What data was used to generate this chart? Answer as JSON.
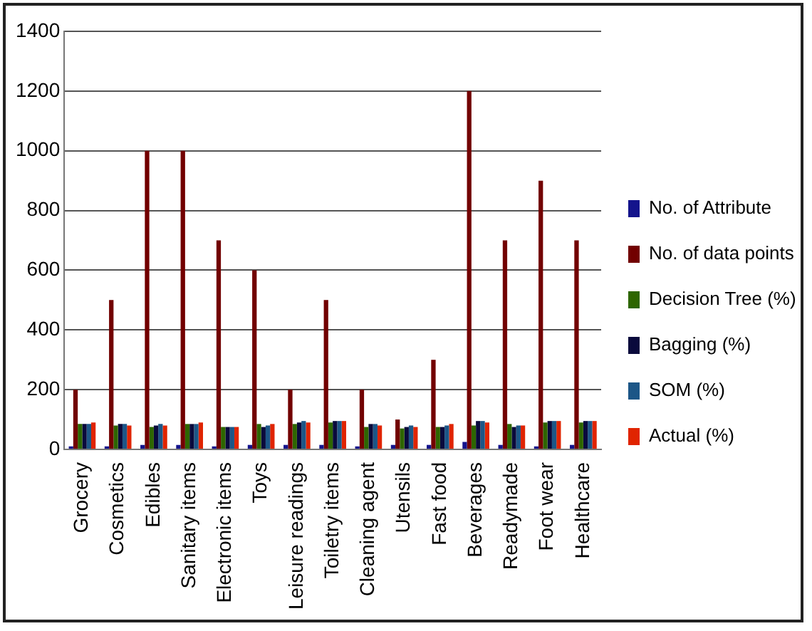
{
  "chart_data": {
    "type": "bar",
    "categories": [
      "Grocery",
      "Cosmetics",
      "Edibles",
      "Sanitary items",
      "Electronic items",
      "Toys",
      "Leisure readings",
      "Toiletry items",
      "Cleaning agent",
      "Utensils",
      "Fast food",
      "Beverages",
      "Readymade",
      "Foot wear",
      "Healthcare"
    ],
    "series": [
      {
        "name": "No. of Attribute",
        "color": "#14148c",
        "values": [
          10,
          10,
          15,
          15,
          10,
          15,
          15,
          15,
          10,
          15,
          15,
          25,
          15,
          10,
          15
        ]
      },
      {
        "name": "No. of data points",
        "color": "#720000",
        "values": [
          200,
          500,
          1000,
          1000,
          700,
          600,
          200,
          500,
          200,
          100,
          300,
          1200,
          700,
          900,
          700
        ]
      },
      {
        "name": "Decision Tree (%)",
        "color": "#2e6600",
        "values": [
          85,
          80,
          75,
          85,
          75,
          85,
          85,
          90,
          75,
          70,
          75,
          80,
          85,
          90,
          90
        ]
      },
      {
        "name": "Bagging (%)",
        "color": "#0a0a3c",
        "values": [
          85,
          85,
          80,
          85,
          75,
          75,
          90,
          95,
          85,
          75,
          75,
          95,
          75,
          95,
          95
        ]
      },
      {
        "name": "SOM (%)",
        "color": "#1c5687",
        "values": [
          85,
          85,
          85,
          85,
          75,
          80,
          95,
          95,
          85,
          80,
          80,
          95,
          80,
          95,
          95
        ]
      },
      {
        "name": "Actual (%)",
        "color": "#e02400",
        "values": [
          90,
          80,
          80,
          90,
          75,
          85,
          90,
          95,
          80,
          75,
          85,
          90,
          80,
          95,
          95
        ]
      }
    ],
    "ylim": [
      0,
      1400
    ],
    "yticks": [
      0,
      200,
      400,
      600,
      800,
      1000,
      1200,
      1400
    ],
    "grid": "y",
    "legend": "right"
  }
}
